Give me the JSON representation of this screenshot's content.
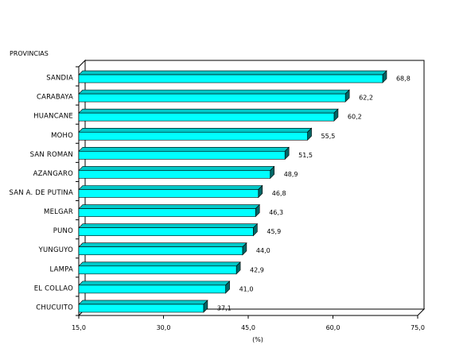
{
  "chart_data": {
    "type": "bar",
    "orientation": "horizontal",
    "style": "3d",
    "title": "",
    "category_axis_title": "PROVINCIAS",
    "value_axis_title": "(%)",
    "categories": [
      "SANDIA",
      "CARABAYA",
      "HUANCANE",
      "MOHO",
      "SAN ROMAN",
      "AZANGARO",
      "SAN A. DE PUTINA",
      "MELGAR",
      "PUNO",
      "YUNGUYO",
      "LAMPA",
      "EL COLLAO",
      "CHUCUITO"
    ],
    "values": [
      68.8,
      62.2,
      60.2,
      55.5,
      51.5,
      48.9,
      46.8,
      46.3,
      45.9,
      44.0,
      42.9,
      41.0,
      37.1
    ],
    "value_labels": [
      "68,8",
      "62,2",
      "60,2",
      "55,5",
      "51,5",
      "48,9",
      "46,8",
      "46,3",
      "45,9",
      "44,0",
      "42,9",
      "41,0",
      "37,1"
    ],
    "xlim": [
      15,
      75
    ],
    "x_ticks": [
      15,
      30,
      45,
      60,
      75
    ],
    "x_tick_labels": [
      "15,0",
      "30,0",
      "45,0",
      "60,0",
      "75,0"
    ],
    "grid": false,
    "legend": false
  },
  "colors": {
    "bar_front": "#00ffff",
    "bar_top": "#00c8c8",
    "bar_side": "#006666",
    "wall": "#ffffff",
    "axis": "#000000"
  }
}
